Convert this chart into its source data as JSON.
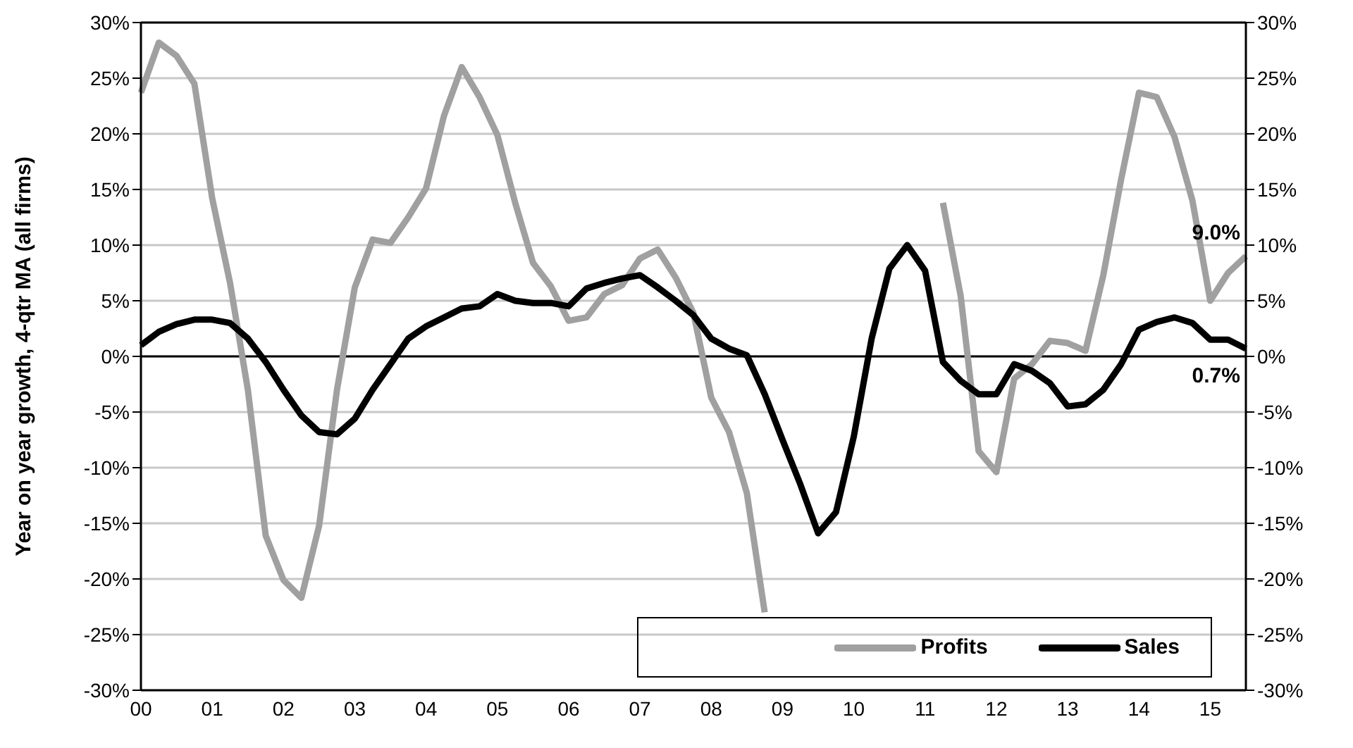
{
  "chart_data": {
    "type": "line",
    "ylabel": "Year on year growth, 4-qtr MA (all firms)",
    "categories": [
      "00",
      null,
      null,
      null,
      "01",
      null,
      null,
      null,
      "02",
      null,
      null,
      null,
      "03",
      null,
      null,
      null,
      "04",
      null,
      null,
      null,
      "05",
      null,
      null,
      null,
      "06",
      null,
      null,
      null,
      "07",
      null,
      null,
      null,
      "08",
      null,
      null,
      null,
      "09",
      null,
      null,
      null,
      "10",
      null,
      null,
      null,
      "11",
      null,
      null,
      null,
      "12",
      null,
      null,
      null,
      "13",
      null,
      null,
      null,
      "14",
      null,
      null,
      null,
      "15",
      null,
      null
    ],
    "series": [
      {
        "name": "Profits",
        "color": "#a0a0a0",
        "values": [
          23.7,
          28.2,
          27.0,
          24.5,
          14.2,
          6.6,
          -3.0,
          -16.1,
          -20.1,
          -21.7,
          -15.2,
          -3.0,
          6.2,
          10.5,
          10.2,
          12.5,
          15.1,
          21.6,
          26.0,
          23.3,
          19.9,
          13.8,
          8.4,
          6.3,
          3.2,
          3.5,
          5.6,
          6.4,
          8.8,
          9.6,
          7.1,
          3.9,
          -3.7,
          -6.8,
          -12.3,
          -23,
          null,
          null,
          null,
          null,
          null,
          null,
          null,
          null,
          null,
          13.8,
          5.4,
          -8.5,
          -10.4,
          -2.0,
          -0.7,
          1.4,
          1.2,
          0.5,
          7.3,
          15.9,
          23.7,
          23.3,
          19.7,
          14,
          5,
          7.5,
          9.0
        ],
        "value_labels": [
          null,
          null,
          null,
          null,
          null,
          null,
          null,
          null,
          null,
          null,
          null,
          null,
          null,
          null,
          null,
          null,
          null,
          null,
          null,
          null,
          null,
          null,
          null,
          null,
          null,
          null,
          null,
          null,
          null,
          null,
          null,
          null,
          null,
          null,
          null,
          null,
          null,
          null,
          null,
          null,
          null,
          null,
          null,
          null,
          null,
          null,
          null,
          null,
          null,
          null,
          null,
          null,
          null,
          null,
          null,
          null,
          null,
          null,
          null,
          null,
          null,
          null,
          "9.0%"
        ]
      },
      {
        "name": "Sales",
        "color": "#000000",
        "values": [
          1.0,
          2.2,
          2.9,
          3.3,
          3.3,
          3.0,
          1.6,
          -0.5,
          -3.0,
          -5.3,
          -6.8,
          -7.0,
          -5.6,
          -3.0,
          -0.7,
          1.6,
          2.7,
          3.5,
          4.3,
          4.5,
          5.6,
          5.0,
          4.8,
          4.8,
          4.5,
          6.1,
          6.6,
          7.0,
          7.3,
          6.2,
          5.0,
          3.7,
          1.6,
          0.7,
          0.1,
          -3.4,
          -7.5,
          -11.5,
          -15.9,
          -14.0,
          -7.2,
          1.6,
          7.9,
          10.0,
          7.7,
          -0.5,
          -2.2,
          -3.4,
          -3.4,
          -0.7,
          -1.3,
          -2.4,
          -4.5,
          -4.3,
          -3.0,
          -0.7,
          2.4,
          3.1,
          3.5,
          3.0,
          1.5,
          1.5,
          0.7
        ],
        "value_labels": [
          null,
          null,
          null,
          null,
          null,
          null,
          null,
          null,
          null,
          null,
          null,
          null,
          null,
          null,
          null,
          null,
          null,
          null,
          null,
          null,
          null,
          null,
          null,
          null,
          null,
          null,
          null,
          null,
          null,
          null,
          null,
          null,
          null,
          null,
          null,
          null,
          null,
          null,
          null,
          null,
          null,
          null,
          null,
          null,
          null,
          null,
          null,
          null,
          null,
          null,
          null,
          null,
          null,
          null,
          null,
          null,
          null,
          null,
          null,
          null,
          null,
          null,
          "0.7%"
        ]
      }
    ],
    "ylim": [
      -30,
      30
    ],
    "yticks": [
      {
        "value": -30,
        "label": "-30%"
      },
      {
        "value": -25,
        "label": "-25%"
      },
      {
        "value": -20,
        "label": "-20%"
      },
      {
        "value": -15,
        "label": "-15%"
      },
      {
        "value": -10,
        "label": "-10%"
      },
      {
        "value": -5,
        "label": "-5%"
      },
      {
        "value": 0,
        "label": "0%"
      },
      {
        "value": 5,
        "label": "5%"
      },
      {
        "value": 10,
        "label": "10%"
      },
      {
        "value": 15,
        "label": "15%"
      },
      {
        "value": 20,
        "label": "20%"
      },
      {
        "value": 25,
        "label": "25%"
      },
      {
        "value": 30,
        "label": "30%"
      }
    ],
    "y2lim": [
      -30,
      30
    ],
    "y2ticks": [
      {
        "value": -30,
        "label": "-30%"
      },
      {
        "value": -25,
        "label": "-25%"
      },
      {
        "value": -20,
        "label": "-20%"
      },
      {
        "value": -15,
        "label": "-15%"
      },
      {
        "value": -10,
        "label": "-10%"
      },
      {
        "value": -5,
        "label": "-5%"
      },
      {
        "value": 0,
        "label": "0%"
      },
      {
        "value": 5,
        "label": "5%"
      },
      {
        "value": 10,
        "label": "10%"
      },
      {
        "value": 15,
        "label": "15%"
      },
      {
        "value": 20,
        "label": "20%"
      },
      {
        "value": 25,
        "label": "25%"
      },
      {
        "value": 30,
        "label": "30%"
      }
    ],
    "ref_lines": [
      {
        "axis": "y",
        "value": 0,
        "color": "#000000"
      }
    ],
    "grid": "y",
    "legend": "bottom right",
    "marker": "none",
    "line_style": "solid"
  }
}
